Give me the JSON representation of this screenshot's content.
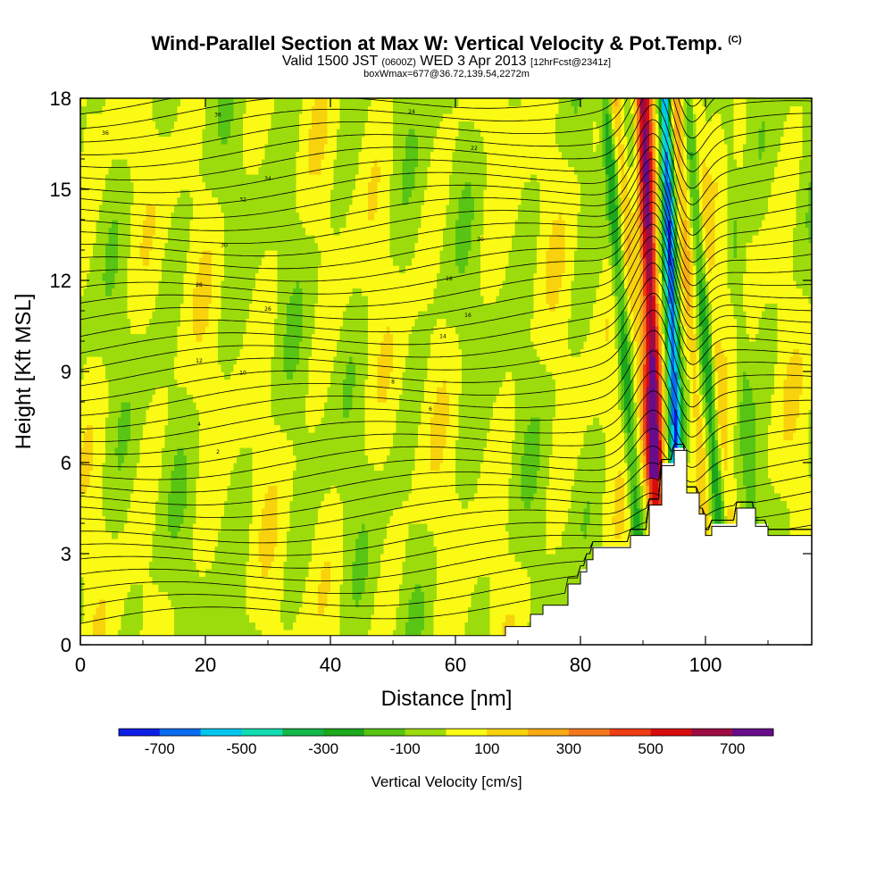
{
  "header": {
    "title": "Wind-Parallel Section at Max W: Vertical Velocity & Pot.Temp.",
    "title_mark": "(C)",
    "valid_prefix": "Valid 1500 JST",
    "valid_z": "(0600Z)",
    "valid_date": "WED 3 Apr 2013",
    "valid_fcst": "[12hrFcst@2341z]",
    "box": "boxWmax=677@36.72,139.54,2272m"
  },
  "chart_data": {
    "type": "heatmap",
    "xlabel": "Distance [nm]",
    "ylabel": "Height [Kft MSL]",
    "xlim": [
      0,
      117
    ],
    "ylim": [
      0,
      18
    ],
    "x_ticks": [
      "0",
      "20",
      "40",
      "60",
      "80",
      "100"
    ],
    "y_ticks": [
      "0",
      "3",
      "6",
      "9",
      "12",
      "15",
      "18"
    ],
    "colorbar": {
      "title": "Vertical Velocity [cm/s]",
      "labels": [
        "-700",
        "-500",
        "-300",
        "-100",
        "100",
        "300",
        "500",
        "700"
      ],
      "bounds": [
        -800,
        800
      ],
      "colors": [
        "#0c1ee6",
        "#0a6cf0",
        "#00c6ee",
        "#12dcb0",
        "#12b84a",
        "#1ca81c",
        "#58c414",
        "#9cdc0c",
        "#fafa14",
        "#f8d20c",
        "#f8aa14",
        "#f4781e",
        "#ee3c14",
        "#d80c0c",
        "#9e0c44",
        "#680c8c"
      ]
    },
    "terrain_kft": [
      [
        0,
        0.3
      ],
      [
        68,
        0.3
      ],
      [
        68,
        0.6
      ],
      [
        72,
        0.6
      ],
      [
        72,
        1.0
      ],
      [
        74,
        1.0
      ],
      [
        74,
        1.3
      ],
      [
        78,
        1.3
      ],
      [
        78,
        2.0
      ],
      [
        80,
        2.0
      ],
      [
        80,
        2.4
      ],
      [
        81,
        2.4
      ],
      [
        81,
        2.8
      ],
      [
        82,
        2.8
      ],
      [
        82,
        3.2
      ],
      [
        88,
        3.2
      ],
      [
        88,
        3.6
      ],
      [
        91,
        3.6
      ],
      [
        91,
        4.6
      ],
      [
        93,
        4.6
      ],
      [
        93,
        5.9
      ],
      [
        95,
        5.9
      ],
      [
        95,
        6.4
      ],
      [
        97,
        6.4
      ],
      [
        97,
        5.0
      ],
      [
        99,
        5.0
      ],
      [
        99,
        4.3
      ],
      [
        100,
        4.3
      ],
      [
        100,
        3.6
      ],
      [
        101,
        3.6
      ],
      [
        101,
        3.9
      ],
      [
        105,
        3.9
      ],
      [
        105,
        4.5
      ],
      [
        108,
        4.5
      ],
      [
        108,
        3.9
      ],
      [
        110,
        3.9
      ],
      [
        110,
        3.6
      ],
      [
        117,
        3.6
      ]
    ],
    "updraft_max_cms": 677,
    "contour_labels": [
      "36",
      "36",
      "34",
      "32",
      "30",
      "28",
      "26",
      "24",
      "22",
      "20",
      "18",
      "16",
      "14",
      "12",
      "10",
      "8",
      "6",
      "4",
      "2"
    ]
  }
}
